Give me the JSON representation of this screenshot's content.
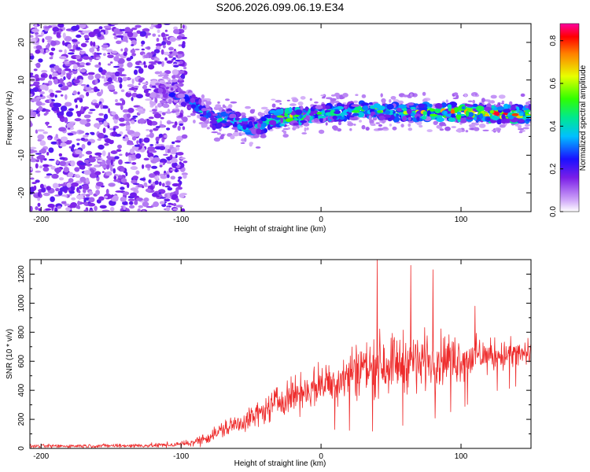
{
  "figure_title": "S206.2026.099.06.19.E34",
  "colors": {
    "snr_line": "#ee2b2b",
    "axis": "#000000",
    "background": "#ffffff"
  },
  "chart_data": [
    {
      "type": "heatmap",
      "name": "spectrogram",
      "xlabel": "Height of straight line (km)",
      "ylabel": "Frequency (Hz)",
      "xlim": [
        -208,
        150
      ],
      "ylim": [
        -25,
        25
      ],
      "x_ticks": [
        -200,
        -100,
        0,
        100
      ],
      "y_ticks": [
        -20,
        -10,
        0,
        10,
        20
      ],
      "noise_region": {
        "x_range": [
          -208,
          -97
        ],
        "y_range": [
          -25,
          25
        ],
        "typical_amplitude": 0.1
      },
      "signal_track": {
        "x": [
          -120,
          -105,
          -95,
          -85,
          -75,
          -65,
          -55,
          -45,
          -35,
          -25,
          -15,
          -5,
          5,
          15,
          30,
          50,
          70,
          90,
          110,
          130,
          150
        ],
        "center_frequency": [
          8,
          6,
          5,
          2,
          -1,
          0,
          -2,
          -3,
          0,
          0,
          0.5,
          1,
          1,
          1.5,
          2,
          1.5,
          1.5,
          1.5,
          1.2,
          1,
          1
        ],
        "peak_amplitude": [
          0.2,
          0.3,
          0.35,
          0.4,
          0.5,
          0.45,
          0.55,
          0.5,
          0.6,
          0.75,
          0.7,
          0.6,
          0.6,
          0.55,
          0.55,
          0.6,
          0.65,
          0.75,
          0.8,
          0.85,
          0.9
        ]
      },
      "colorbar": {
        "label": "Normalized spectral amplitude",
        "range": [
          0.0,
          0.88
        ],
        "ticks": [
          "0.0",
          "0.2",
          "0.4",
          "0.6",
          "0.8"
        ]
      }
    },
    {
      "type": "line",
      "name": "snr",
      "xlabel": "Height of straight line (km)",
      "ylabel": "SNR (10 * v/v)",
      "xlim": [
        -208,
        150
      ],
      "ylim": [
        0,
        1300
      ],
      "x_ticks": [
        -200,
        -100,
        0,
        100
      ],
      "y_ticks": [
        0,
        200,
        400,
        600,
        800,
        1000,
        1200
      ],
      "envelope": {
        "x": [
          -208,
          -120,
          -100,
          -90,
          -80,
          -70,
          -60,
          -50,
          -40,
          -30,
          -20,
          -10,
          0,
          10,
          20,
          30,
          40,
          50,
          60,
          70,
          80,
          90,
          100,
          110,
          120,
          130,
          140,
          150
        ],
        "mean_snr": [
          15,
          20,
          28,
          45,
          80,
          130,
          170,
          210,
          260,
          330,
          370,
          400,
          440,
          460,
          520,
          560,
          580,
          590,
          600,
          600,
          620,
          620,
          620,
          630,
          640,
          640,
          650,
          650
        ],
        "spread": [
          12,
          15,
          20,
          30,
          45,
          60,
          70,
          80,
          90,
          110,
          120,
          130,
          140,
          150,
          180,
          200,
          210,
          200,
          200,
          190,
          190,
          170,
          160,
          130,
          110,
          110,
          100,
          100
        ]
      },
      "notable_peaks": [
        {
          "x": 40,
          "y": 1300
        },
        {
          "x": 64,
          "y": 1260
        },
        {
          "x": 80,
          "y": 1230
        },
        {
          "x": 110,
          "y": 980
        }
      ]
    }
  ]
}
